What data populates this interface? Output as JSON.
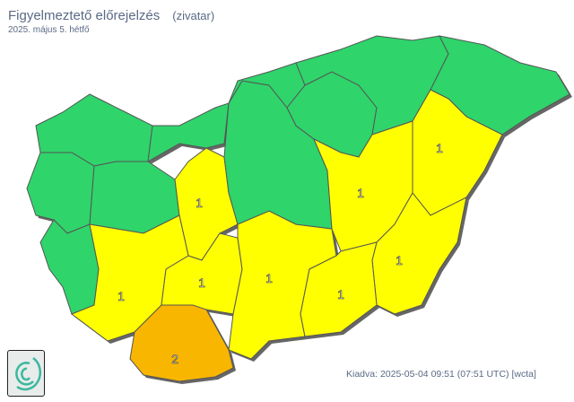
{
  "header": {
    "title": "Figyelmeztető előrejelzés",
    "hazard": "(zivatar)",
    "date": "2025. május 5. hétfő"
  },
  "footer": {
    "issued": "Kiadva: 2025-05-04 09:51 (07:51 UTC) [wcta]"
  },
  "colors": {
    "level0": "#2fd46b",
    "level1": "#ffff00",
    "level2": "#f9b600",
    "border": "#555555"
  },
  "regions": [
    {
      "level": 0
    },
    {
      "level": 0
    },
    {
      "level": 0
    },
    {
      "level": 0
    },
    {
      "level": 0
    },
    {
      "level": 1,
      "label": "1"
    },
    {
      "level": 1,
      "label": "1"
    },
    {
      "level": 1,
      "label": "1"
    },
    {
      "level": 2,
      "label": "2"
    },
    {
      "level": 1,
      "label": "1"
    },
    {
      "level": 0
    },
    {
      "level": 0
    },
    {
      "level": 0
    },
    {
      "level": 0
    },
    {
      "level": 0
    },
    {
      "level": 1,
      "label": "1"
    },
    {
      "level": 1,
      "label": "1"
    },
    {
      "level": 1,
      "label": "1"
    },
    {
      "level": 1,
      "label": "1"
    }
  ]
}
